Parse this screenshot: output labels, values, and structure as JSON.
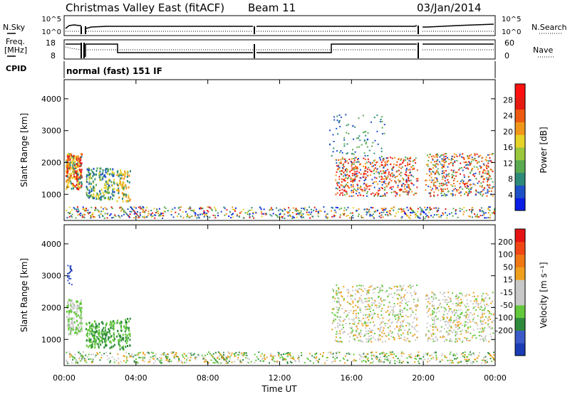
{
  "header": {
    "title": "Christmas Valley East (fitACF)",
    "beam": "Beam 11",
    "date": "03/Jan/2014"
  },
  "noise_panel": {
    "left_label": "N.Sky",
    "right_label": "N.Search",
    "left_ticks": [
      "10^5",
      "10^0"
    ],
    "right_ticks": [
      "10^5",
      "10^0"
    ]
  },
  "freq_panel": {
    "left_label_line1": "Freq.",
    "left_label_line2": "[MHz]",
    "left_ticks": [
      "18",
      "8"
    ],
    "right_label": "Nave",
    "right_ticks": [
      "60",
      "0"
    ]
  },
  "cpid": {
    "label": "CPID",
    "value": "normal (fast) 151 IF"
  },
  "chart_data": [
    {
      "type": "heatmap",
      "name": "power",
      "ylabel": "Slant Range [km]",
      "xlabel": "",
      "ylim": [
        180,
        4600
      ],
      "xlim": [
        0,
        24
      ],
      "x_tick_values": [
        0,
        4,
        8,
        12,
        16,
        20,
        24
      ],
      "y_tick_values": [
        1000,
        2000,
        3000,
        4000
      ],
      "y_tick_labels": [
        "1000",
        "2000",
        "3000",
        "4000"
      ],
      "colorbar": {
        "label": "Power [dB]",
        "range": [
          0,
          32
        ],
        "tick_values": [
          4,
          8,
          12,
          16,
          20,
          24,
          28
        ],
        "tick_labels": [
          "4",
          "8",
          "12",
          "16",
          "20",
          "24",
          "28"
        ],
        "colors": [
          "#0a1ee6",
          "#1e50c8",
          "#2e8a78",
          "#5aaa50",
          "#9ac83c",
          "#e6d228",
          "#f09618",
          "#ee5a10",
          "#e61a10",
          "#ff1010"
        ]
      }
    },
    {
      "type": "heatmap",
      "name": "velocity",
      "ylabel": "Slant Range [km]",
      "xlabel": "Time UT",
      "ylim": [
        180,
        4600
      ],
      "xlim": [
        0,
        24
      ],
      "x_tick_values": [
        0,
        4,
        8,
        12,
        16,
        20,
        24
      ],
      "x_tick_labels": [
        "00:00",
        "04:00",
        "08:00",
        "12:00",
        "16:00",
        "20:00",
        "00:00"
      ],
      "y_tick_values": [
        1000,
        2000,
        3000,
        4000
      ],
      "y_tick_labels": [
        "1000",
        "2000",
        "3000",
        "4000"
      ],
      "colorbar": {
        "label": "Velocity [m s⁻¹]",
        "tick_labels": [
          "200",
          "100",
          "50",
          "15",
          "-15",
          "-50",
          "-100",
          "-200"
        ],
        "colors": [
          "#1a3cb4",
          "#3c5ac8",
          "#2e8a3c",
          "#64c83c",
          "#c8c8c8",
          "#c8c8c8",
          "#f0a01e",
          "#f07814",
          "#f04614",
          "#e61414"
        ]
      }
    }
  ]
}
